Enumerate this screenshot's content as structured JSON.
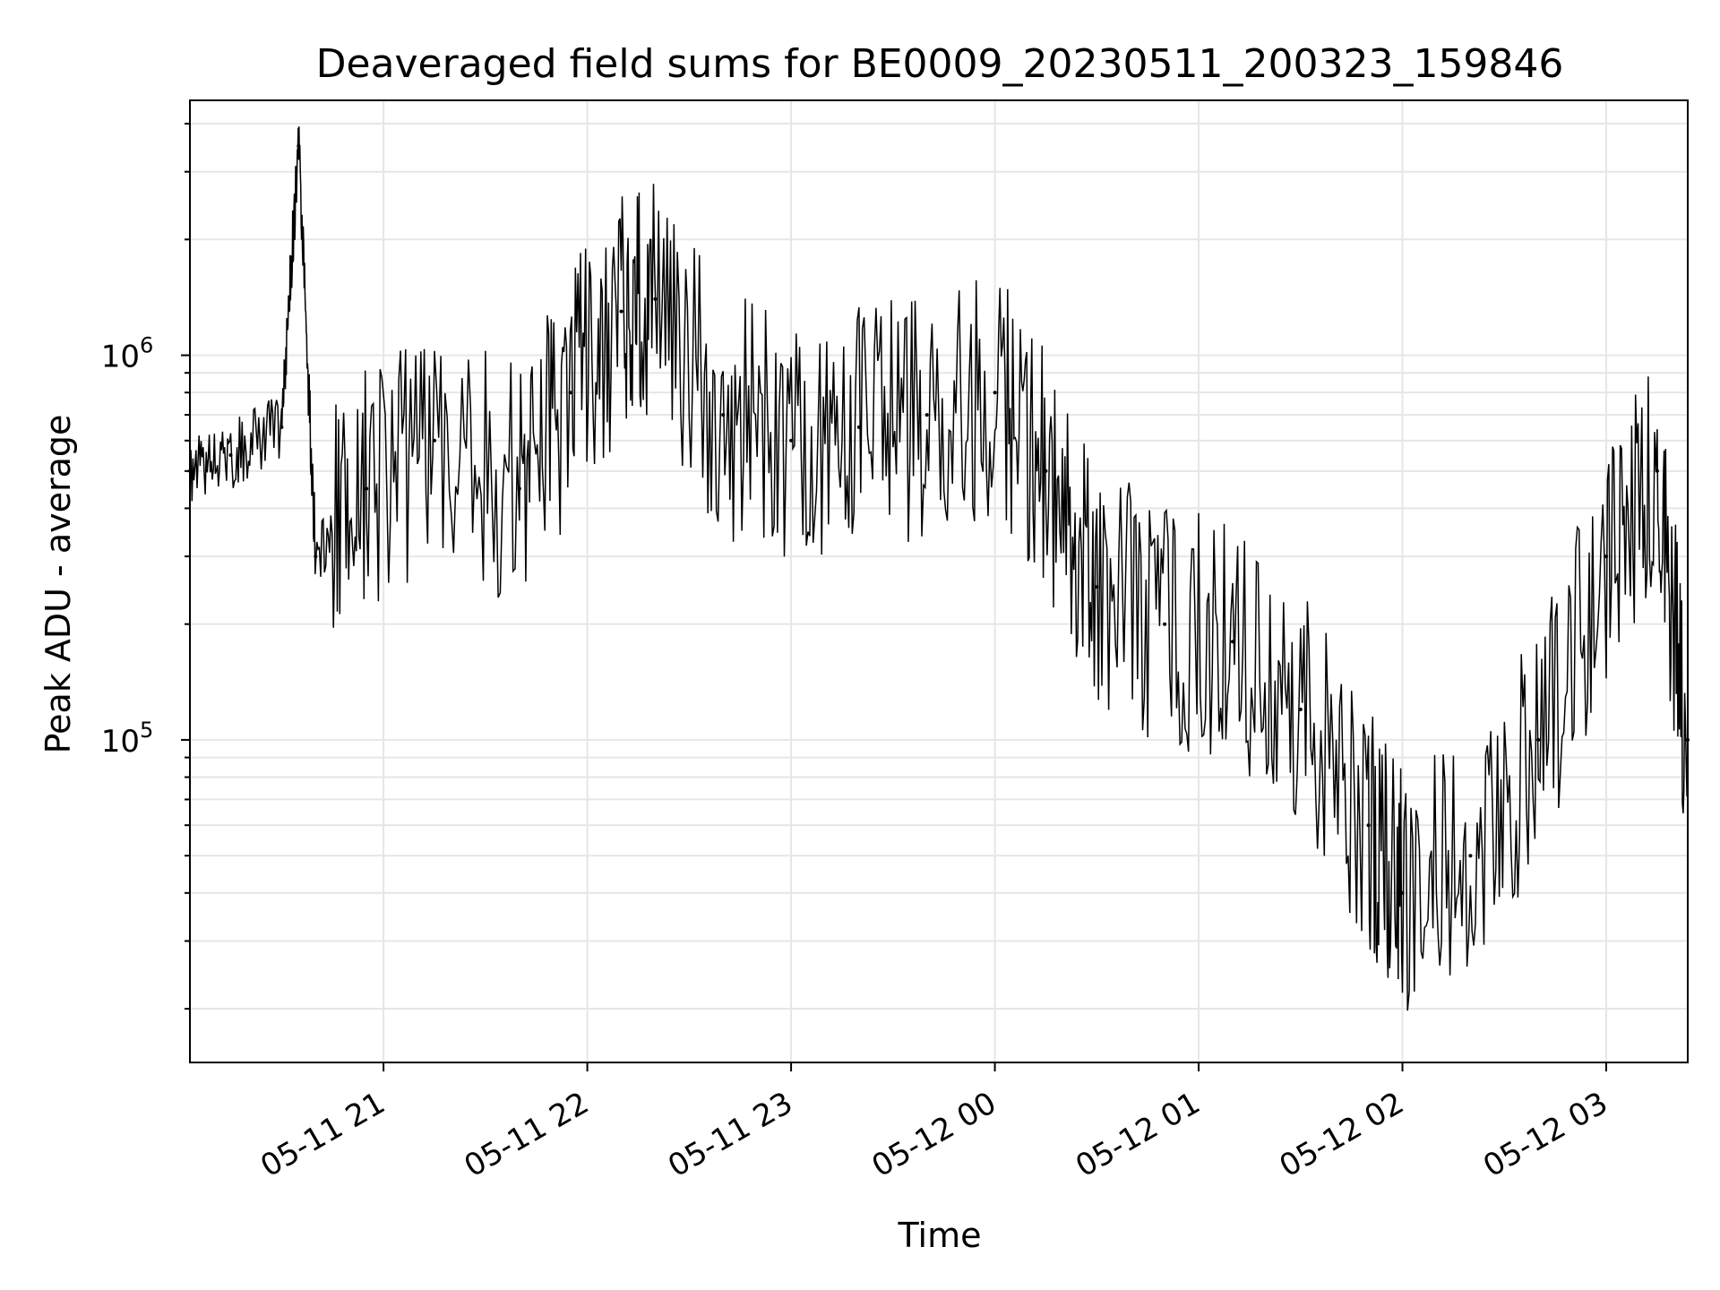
{
  "chart_data": {
    "type": "line",
    "title": "Deaveraged field sums for BE0009_20230511_200323_159846",
    "xlabel": "Time",
    "ylabel": "Peak ADU - average",
    "yscale": "log",
    "xlim": [
      "2023-05-11 20:03",
      "2023-05-12 03:24"
    ],
    "ylim": [
      14500,
      4600000
    ],
    "x_ticks": [
      "05-11 21",
      "05-11 22",
      "05-11 23",
      "05-12 00",
      "05-12 01",
      "05-12 02",
      "05-12 03"
    ],
    "y_ticks": [
      {
        "value": 100000,
        "base": "10",
        "exp": "5"
      },
      {
        "value": 1000000,
        "base": "10",
        "exp": "6"
      }
    ],
    "grid": true,
    "line_color": "#000000",
    "grid_color": "#e6e6e6",
    "series": [
      {
        "x": [
          "2023-05-11 20:03",
          "2023-05-11 20:15",
          "2023-05-11 20:30",
          "2023-05-11 20:35",
          "2023-05-11 20:40",
          "2023-05-11 20:55",
          "2023-05-11 21:15",
          "2023-05-11 21:40",
          "2023-05-11 21:55",
          "2023-05-11 22:10",
          "2023-05-11 22:20",
          "2023-05-11 22:40",
          "2023-05-11 23:00",
          "2023-05-11 23:20",
          "2023-05-11 23:40",
          "2023-05-12 00:00",
          "2023-05-12 00:15",
          "2023-05-12 00:30",
          "2023-05-12 00:50",
          "2023-05-12 01:10",
          "2023-05-12 01:30",
          "2023-05-12 01:50",
          "2023-05-12 02:00",
          "2023-05-12 02:20",
          "2023-05-12 02:40",
          "2023-05-12 03:00",
          "2023-05-12 03:15",
          "2023-05-12 03:24"
        ],
        "y": [
          500000,
          550000,
          650000,
          3500000,
          300000,
          450000,
          600000,
          450000,
          800000,
          1300000,
          1400000,
          700000,
          600000,
          650000,
          700000,
          800000,
          500000,
          250000,
          200000,
          180000,
          120000,
          60000,
          40000,
          50000,
          100000,
          300000,
          500000,
          100000
        ]
      }
    ]
  }
}
